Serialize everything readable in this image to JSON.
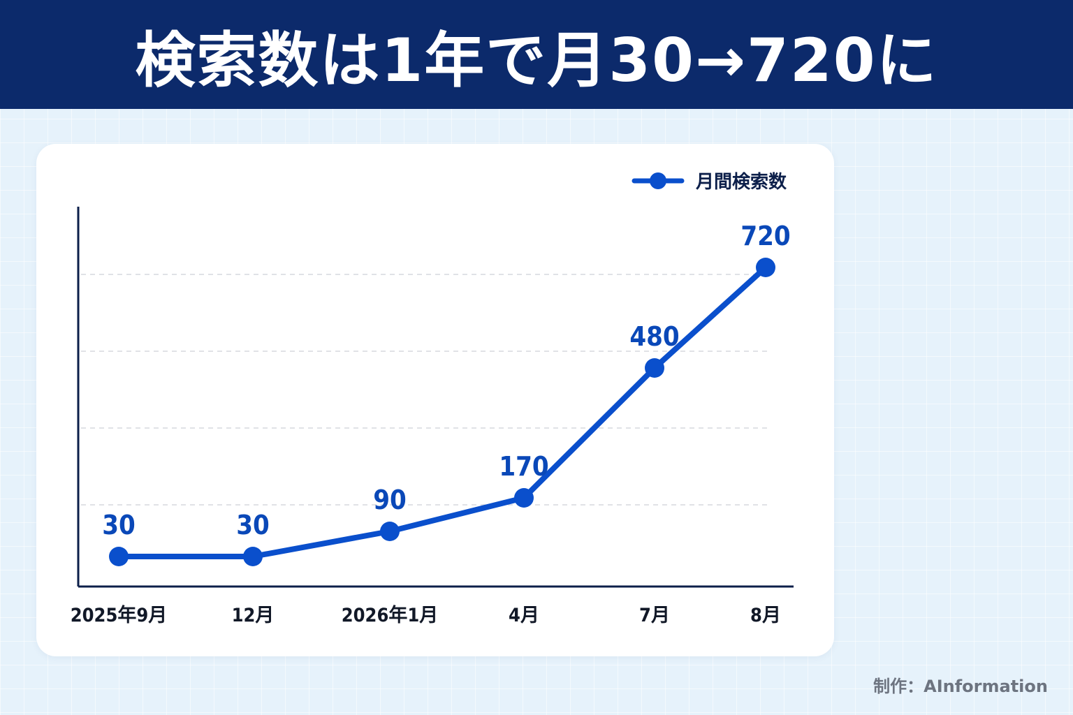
{
  "header": {
    "title": "検索数は1年で月30→720に"
  },
  "credit": "制作：AInformation",
  "colors": {
    "header_bg": "#0c2a6b",
    "line": "#0a4fcc",
    "label": "#0a48b8",
    "axis": "#0c1f4a",
    "grid": "#d6d9de",
    "tick_text": "#111827"
  },
  "chart_data": {
    "type": "line",
    "categories": [
      "2025年9月",
      "12月",
      "2026年1月",
      "4月",
      "7月",
      "8月"
    ],
    "series": [
      {
        "name": "月間検索数",
        "values": [
          30,
          30,
          90,
          170,
          480,
          720
        ]
      }
    ],
    "data_labels": [
      "30",
      "30",
      "90",
      "170",
      "480",
      "720"
    ],
    "ylim": [
      0,
      850
    ],
    "grid": true,
    "legend": "top-right",
    "title": "",
    "xlabel": "",
    "ylabel": ""
  }
}
